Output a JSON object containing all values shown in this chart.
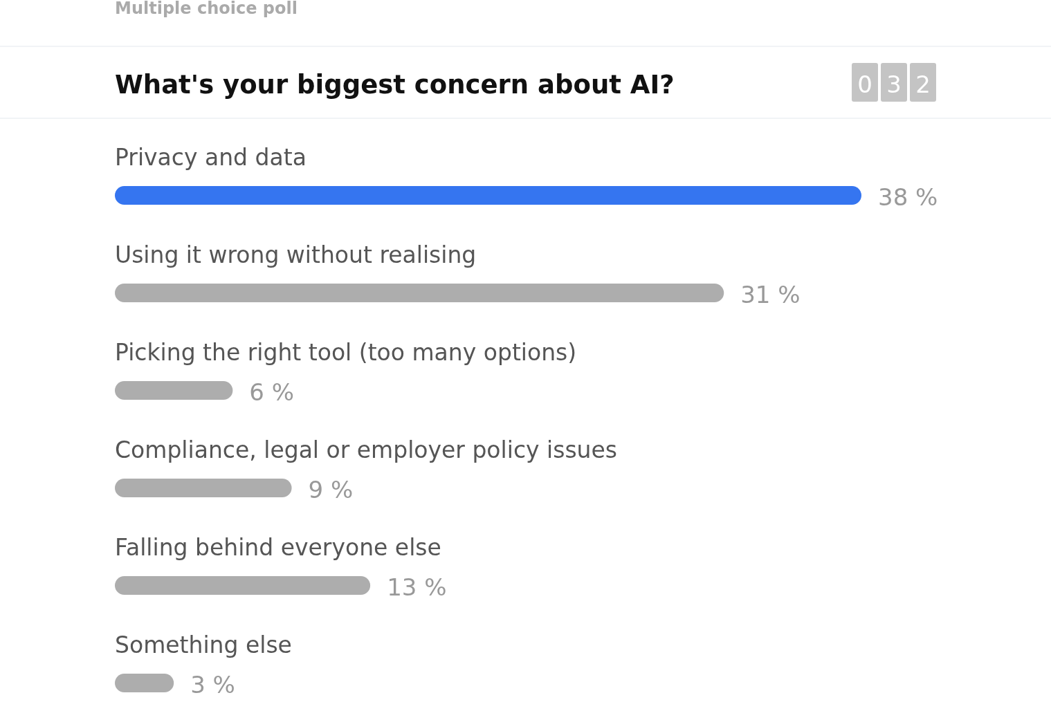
{
  "chart_data": {
    "type": "bar",
    "orientation": "horizontal",
    "subtitle": "Multiple choice poll",
    "title": "What's your biggest concern about AI?",
    "annotations": [
      "032"
    ],
    "categories": [
      "Privacy and data",
      "Using it wrong without realising",
      "Picking the right tool (too many options)",
      "Compliance, legal or employer policy issues",
      "Falling behind everyone else",
      "Something else"
    ],
    "values": [
      38,
      31,
      6,
      9,
      13,
      3
    ],
    "colors": [
      "#3575f0",
      "#adadad",
      "#adadad",
      "#adadad",
      "#adadad",
      "#adadad"
    ],
    "value_labels": [
      "38 %",
      "31 %",
      "6 %",
      "9 %",
      "13 %",
      "3 %"
    ],
    "xlim": [
      0,
      38
    ],
    "tick_labels": false
  }
}
